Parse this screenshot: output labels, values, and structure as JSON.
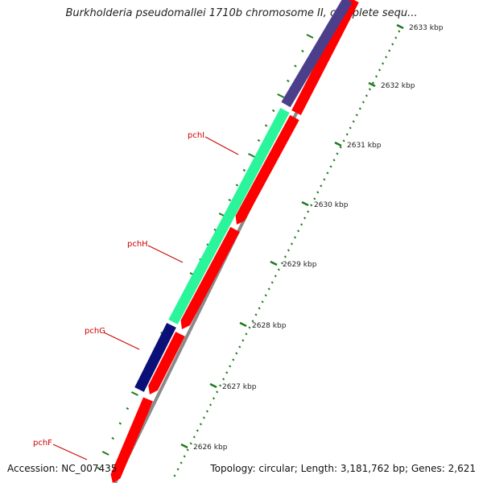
{
  "header": {
    "title": "Burkholderia pseudomallei 1710b chromosome II, complete sequ..."
  },
  "footer": {
    "accession": "Accession: NC_007435",
    "topology": "Topology: circular; Length: 3,181,762 bp; Genes: 2,621"
  },
  "map": {
    "scale_labels": [
      "2633 kbp",
      "2632 kbp",
      "2631 kbp",
      "2630 kbp",
      "2629 kbp",
      "2628 kbp",
      "2627 kbp",
      "2626 kbp"
    ],
    "gene_labels": [
      "pchI",
      "pchH",
      "pchG",
      "pchF"
    ],
    "colors": {
      "forward_strand": "#ff0000",
      "gene_pchI_pchH": "#2af59a",
      "gene_pchG": "#0a1078",
      "gene_upper": "#4b3f8c",
      "label_text": "#cc0000",
      "label_leader": "#cc0000",
      "tick_marks": "#1e7a1e",
      "backbone": "#888888"
    }
  }
}
